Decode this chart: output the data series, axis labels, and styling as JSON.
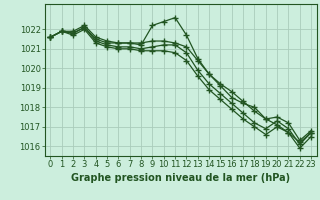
{
  "xlabel": "Graphe pression niveau de la mer (hPa)",
  "bg_color": "#cceedd",
  "grid_color": "#aaccbb",
  "line_color": "#225522",
  "x": [
    0,
    1,
    2,
    3,
    4,
    5,
    6,
    7,
    8,
    9,
    10,
    11,
    12,
    13,
    14,
    15,
    16,
    17,
    18,
    19,
    20,
    21,
    22,
    23
  ],
  "series": [
    [
      1021.6,
      1021.9,
      1021.9,
      1022.2,
      1021.6,
      1021.4,
      1021.3,
      1021.3,
      1021.2,
      1022.2,
      1022.4,
      1022.6,
      1021.7,
      1020.5,
      1019.7,
      1019.1,
      1018.5,
      1018.2,
      1018.0,
      1017.4,
      1017.1,
      1016.7,
      1016.2,
      1016.7
    ],
    [
      1021.6,
      1021.9,
      1021.8,
      1022.1,
      1021.4,
      1021.2,
      1021.1,
      1021.1,
      1021.0,
      1021.1,
      1021.2,
      1021.2,
      1020.8,
      1019.9,
      1019.2,
      1018.7,
      1018.2,
      1017.7,
      1017.2,
      1016.9,
      1017.3,
      1016.9,
      1016.1,
      1016.7
    ],
    [
      1021.6,
      1021.9,
      1021.7,
      1022.0,
      1021.3,
      1021.1,
      1021.0,
      1021.0,
      1020.9,
      1020.9,
      1020.9,
      1020.8,
      1020.4,
      1019.6,
      1018.9,
      1018.4,
      1017.9,
      1017.4,
      1017.0,
      1016.6,
      1017.0,
      1016.7,
      1015.9,
      1016.5
    ],
    [
      1021.6,
      1021.9,
      1021.8,
      1022.1,
      1021.5,
      1021.3,
      1021.3,
      1021.3,
      1021.3,
      1021.4,
      1021.4,
      1021.3,
      1021.1,
      1020.4,
      1019.7,
      1019.2,
      1018.8,
      1018.3,
      1017.8,
      1017.4,
      1017.5,
      1017.2,
      1016.3,
      1016.8
    ]
  ],
  "ylim": [
    1015.5,
    1023.3
  ],
  "yticks": [
    1016,
    1017,
    1018,
    1019,
    1020,
    1021,
    1022
  ],
  "marker": "+",
  "markersize": 4,
  "linewidth": 0.9,
  "xlabel_fontsize": 7,
  "tick_fontsize": 6
}
